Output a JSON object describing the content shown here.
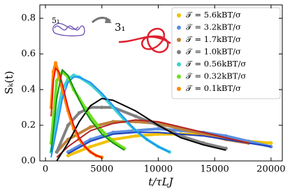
{
  "chart_data": {
    "type": "line",
    "ylabel": "Sₖ(t)",
    "xlabel": "t/τLJ",
    "annotations": [
      "5₁",
      "3₁"
    ],
    "xlim": [
      -500,
      21000
    ],
    "ylim": [
      0,
      0.875
    ],
    "xticks": [
      0,
      5000,
      10000,
      15000,
      20000
    ],
    "yticks": [
      {
        "value": 0,
        "label": "0.0"
      },
      0.2,
      0.4,
      0.6,
      0.8
    ],
    "legend": "upper right",
    "series": [
      {
        "name": "𝒯 = 5.6kBT/σ",
        "color": "#f2c200",
        "x": [
          2000,
          4000,
          6000,
          8000,
          10000,
          12000,
          14000,
          16000,
          18000,
          20000
        ],
        "values": [
          0.03,
          0.08,
          0.12,
          0.14,
          0.15,
          0.15,
          0.15,
          0.13,
          0.11,
          0.1
        ]
      },
      {
        "name": "𝒯 = 3.2kBT/σ",
        "color": "#5b8fe0",
        "fit_color": "#1f3fbf",
        "x": [
          2000,
          4000,
          6000,
          8000,
          10000,
          12000,
          14000,
          16000,
          18000,
          20000
        ],
        "values": [
          0.05,
          0.12,
          0.16,
          0.17,
          0.18,
          0.17,
          0.16,
          0.14,
          0.11,
          0.08
        ],
        "fit": [
          0.04,
          0.11,
          0.15,
          0.16,
          0.16,
          0.15,
          0.14,
          0.12,
          0.1,
          0.08
        ]
      },
      {
        "name": "𝒯 = 1.7kBT/σ",
        "color": "#c0803c",
        "fit_color": "#b22222",
        "x": [
          1000,
          2000,
          4000,
          6000,
          8000,
          10000,
          12000,
          14000,
          16000,
          18000
        ],
        "values": [
          0.05,
          0.12,
          0.19,
          0.22,
          0.22,
          0.21,
          0.18,
          0.15,
          0.12,
          0.1
        ],
        "fit": [
          0.02,
          0.08,
          0.17,
          0.21,
          0.23,
          0.22,
          0.19,
          0.16,
          0.13,
          0.1
        ]
      },
      {
        "name": "𝒯 = 1.0kBT/σ",
        "color": "#808080",
        "fit_color": "#000000",
        "x": [
          1000,
          2000,
          3000,
          4000,
          5000,
          6000,
          8000,
          10000,
          12000,
          14000,
          16000
        ],
        "values": [
          0.05,
          0.2,
          0.27,
          0.3,
          0.3,
          0.3,
          0.25,
          0.2,
          0.14,
          0.1,
          0.07
        ],
        "fit": [
          0,
          0.1,
          0.22,
          0.31,
          0.35,
          0.34,
          0.28,
          0.2,
          0.13,
          0.09,
          0.06
        ]
      },
      {
        "name": "𝒯 = 0.56kBT/σ",
        "color": "#40d0d0",
        "fit_color": "#1e90ff",
        "x": [
          500,
          1000,
          1500,
          2000,
          2500,
          3000,
          4000,
          5000,
          6000,
          7000,
          8000,
          9000,
          10000,
          11000
        ],
        "values": [
          0.05,
          0.25,
          0.4,
          0.46,
          0.48,
          0.47,
          0.43,
          0.37,
          0.3,
          0.23,
          0.17,
          0.12,
          0.08,
          0.05
        ],
        "fit": [
          0.02,
          0.18,
          0.35,
          0.44,
          0.47,
          0.47,
          0.44,
          0.38,
          0.31,
          0.24,
          0.17,
          0.12,
          0.08,
          0.05
        ]
      },
      {
        "name": "𝒯 = 0.32kBT/σ",
        "color": "#70e020",
        "fit_color": "#159015",
        "x": [
          500,
          1000,
          1500,
          2000,
          2500,
          3000,
          3500,
          4000,
          5000,
          6000,
          7000
        ],
        "values": [
          0.1,
          0.45,
          0.5,
          0.47,
          0.4,
          0.35,
          0.3,
          0.25,
          0.17,
          0.11,
          0.07
        ],
        "fit": [
          0.05,
          0.35,
          0.51,
          0.48,
          0.41,
          0.34,
          0.28,
          0.23,
          0.15,
          0.1,
          0.06
        ]
      },
      {
        "name": "𝒯 = 0.1kBT/σ",
        "color": "#ff8a00",
        "fit_color": "#ee1111",
        "x": [
          500,
          700,
          900,
          1200,
          1500,
          2000,
          2500,
          3000,
          3500,
          4000,
          4500,
          5000
        ],
        "values": [
          0.3,
          0.5,
          0.55,
          0.48,
          0.4,
          0.28,
          0.18,
          0.12,
          0.08,
          0.05,
          0.03,
          0.02
        ],
        "fit": [
          0.25,
          0.45,
          0.52,
          0.5,
          0.43,
          0.3,
          0.2,
          0.13,
          0.08,
          0.05,
          0.03,
          0.02
        ]
      }
    ]
  }
}
